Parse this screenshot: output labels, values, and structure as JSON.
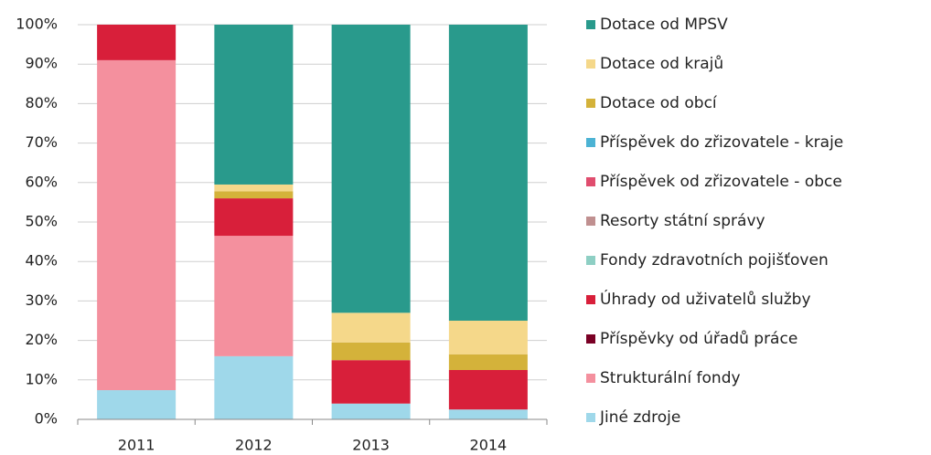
{
  "chart_data": {
    "type": "stacked_bar",
    "categories": [
      "2011",
      "2012",
      "2013",
      "2014"
    ],
    "series": [
      {
        "name": "Jiné zdroje",
        "color": "#9fd8ea",
        "values": [
          7.4,
          16,
          4,
          2.5
        ]
      },
      {
        "name": "Strukturální fondy",
        "color": "#f4909e",
        "values": [
          83.6,
          30.5,
          0,
          0
        ]
      },
      {
        "name": "Příspěvky od úřadů práce",
        "color": "#7a0025",
        "values": [
          0,
          0,
          0,
          0
        ]
      },
      {
        "name": "Úhrady od uživatelů služby",
        "color": "#d81f3a",
        "values": [
          9,
          9.5,
          11,
          10
        ]
      },
      {
        "name": "Fondy zdravotních pojišťoven",
        "color": "#8ecfc4",
        "values": [
          0,
          0,
          0,
          0
        ]
      },
      {
        "name": "Resorty státní správy",
        "color": "#c09090",
        "values": [
          0,
          0,
          0,
          0
        ]
      },
      {
        "name": "Příspěvek od zřizovatele - obce",
        "color": "#e04d6e",
        "values": [
          0,
          0,
          0,
          0
        ]
      },
      {
        "name": "Příspěvek do zřizovatele - kraje",
        "color": "#4cb3d4",
        "values": [
          0,
          0,
          0,
          0
        ]
      },
      {
        "name": "Dotace od obcí",
        "color": "#d4b23a",
        "values": [
          0,
          1.8,
          4.5,
          4
        ]
      },
      {
        "name": "Dotace od krajů",
        "color": "#f5d88a",
        "values": [
          0,
          1.7,
          7.5,
          8.5
        ]
      },
      {
        "name": "Dotace od MPSV",
        "color": "#299a8c",
        "values": [
          0,
          40.5,
          73,
          75
        ]
      }
    ],
    "ylim": [
      0,
      100
    ],
    "yticks": [
      {
        "value": 0,
        "label": "0%"
      },
      {
        "value": 10,
        "label": "10%"
      },
      {
        "value": 20,
        "label": "20%"
      },
      {
        "value": 30,
        "label": "30%"
      },
      {
        "value": 40,
        "label": "40%"
      },
      {
        "value": 50,
        "label": "50%"
      },
      {
        "value": 60,
        "label": "60%"
      },
      {
        "value": 70,
        "label": "70%"
      },
      {
        "value": 80,
        "label": "80%"
      },
      {
        "value": 90,
        "label": "90%"
      },
      {
        "value": 100,
        "label": "100%"
      }
    ],
    "grid": true,
    "legend": "right"
  }
}
